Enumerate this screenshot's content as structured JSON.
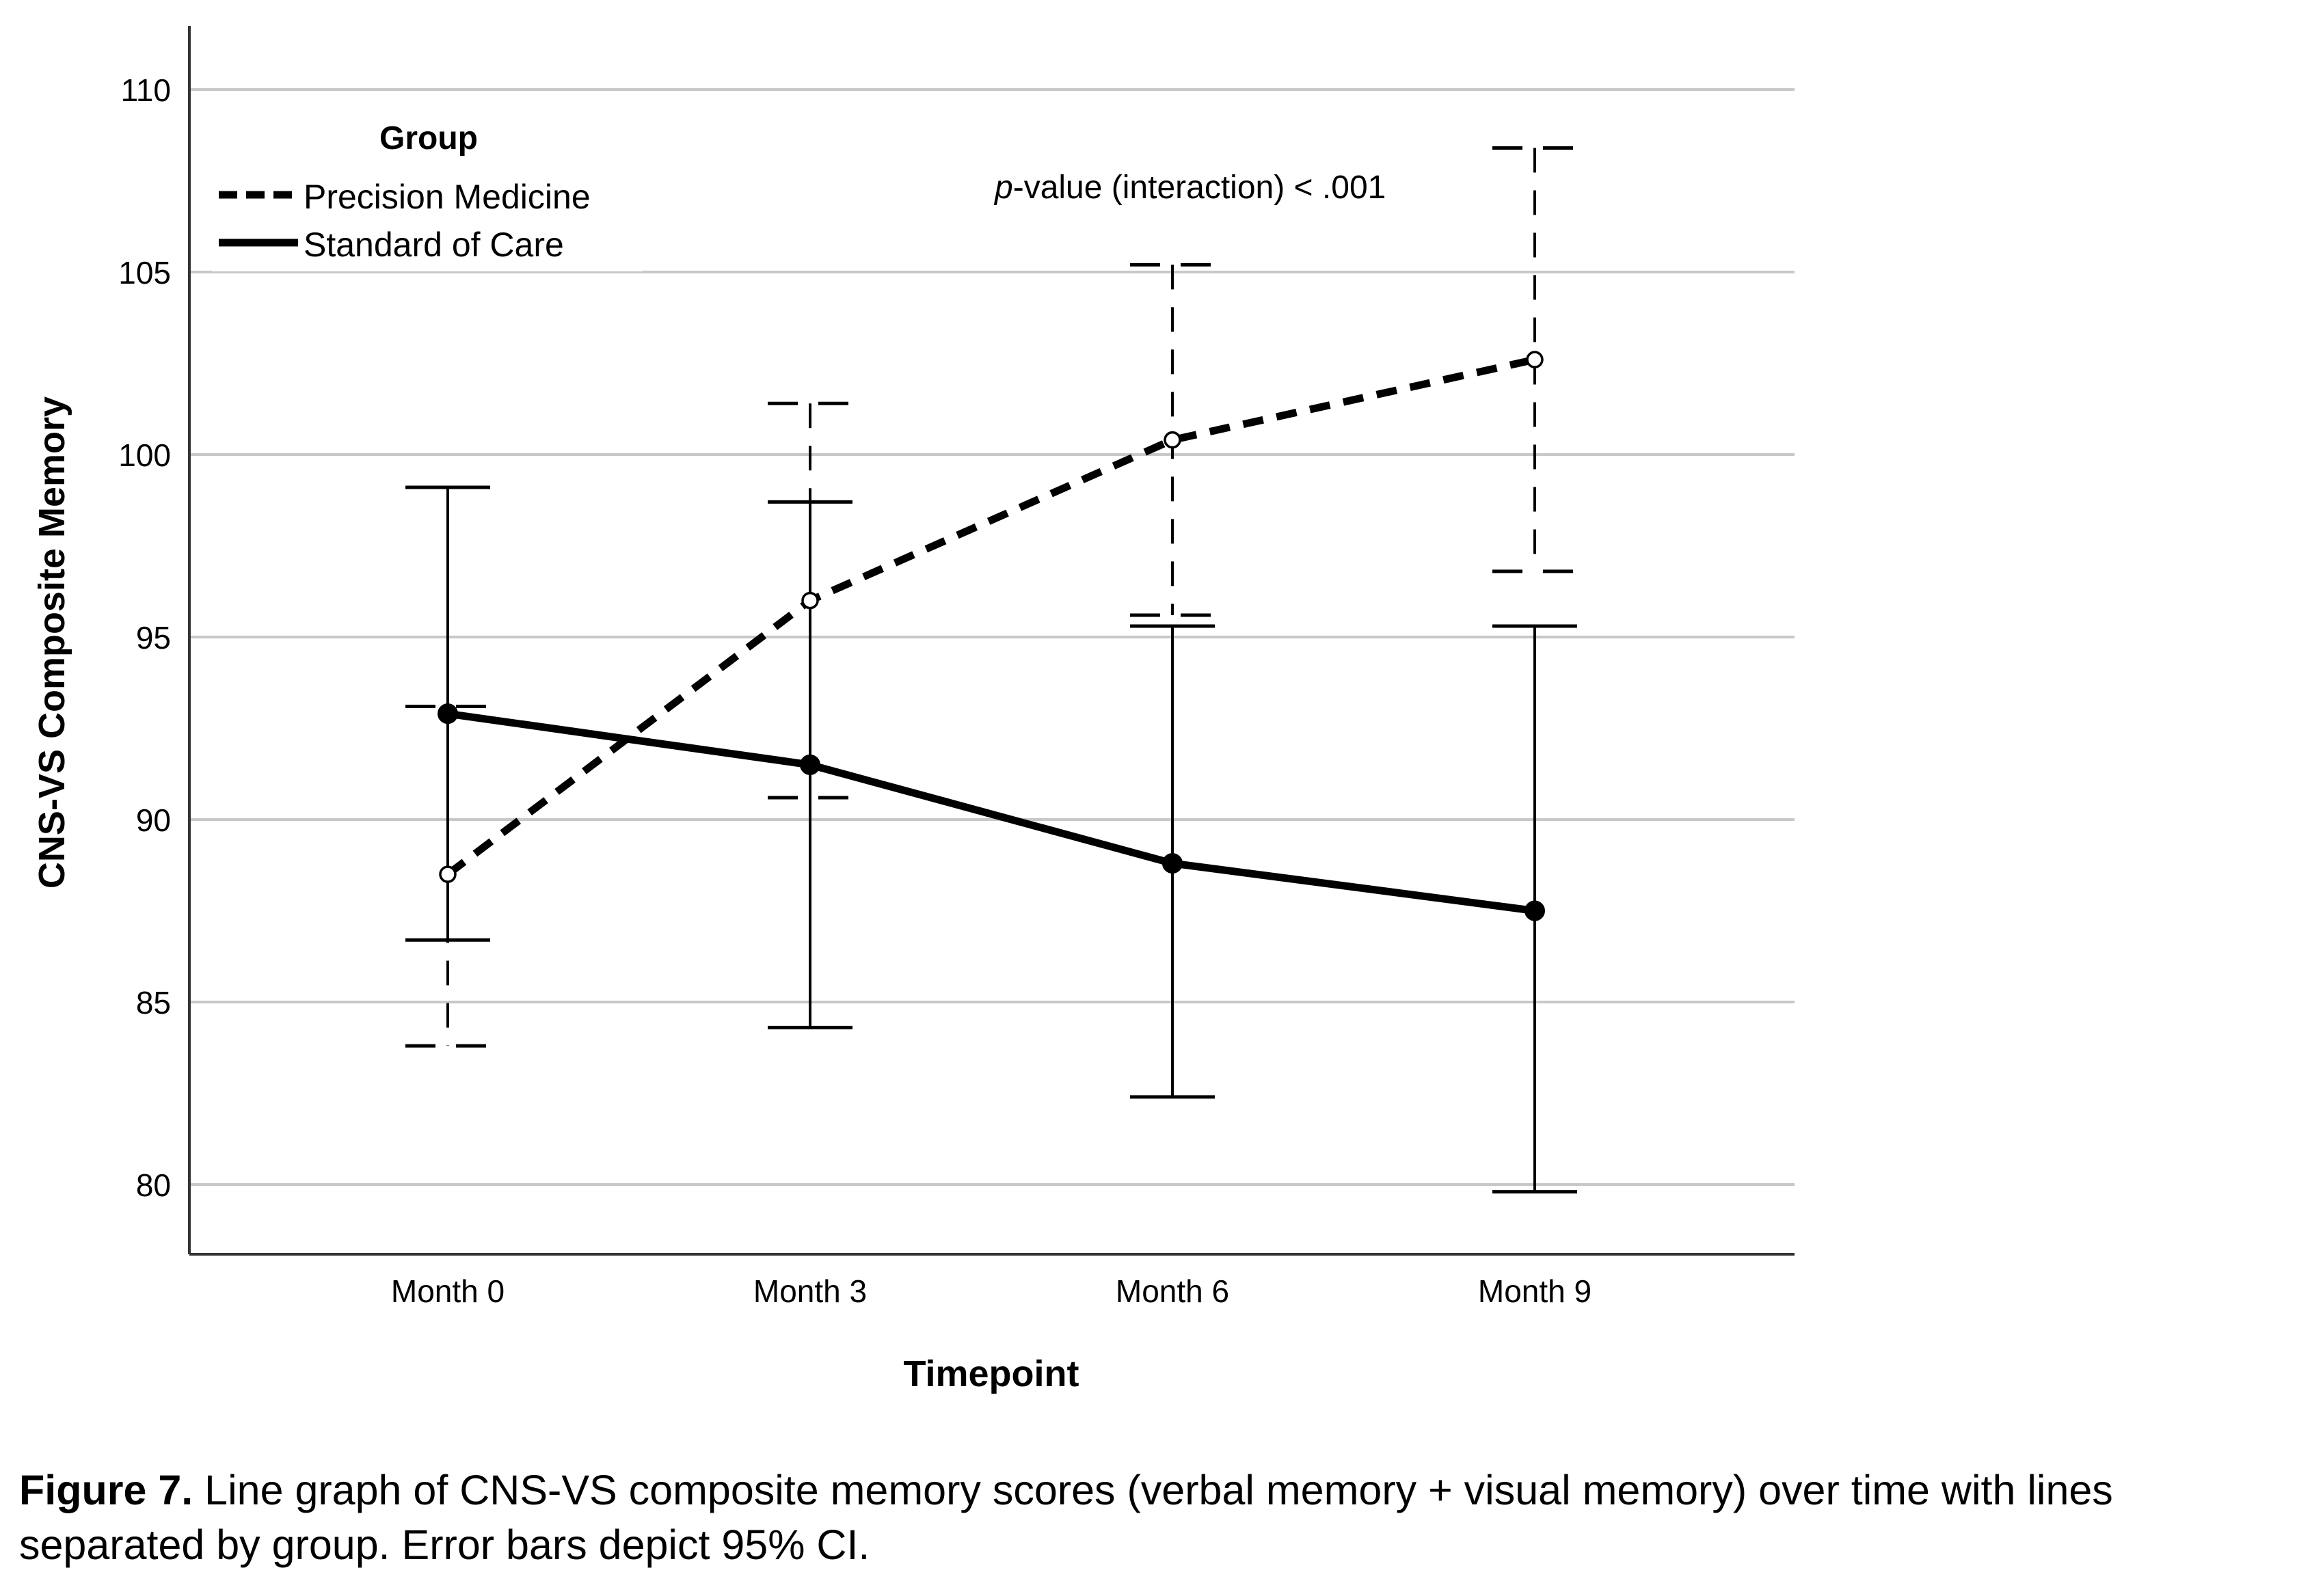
{
  "chart_data": {
    "type": "line",
    "xlabel": "Timepoint",
    "ylabel": "CNS-VS Composite Memory",
    "categories": [
      "Month 0",
      "Month 3",
      "Month 6",
      "Month 9"
    ],
    "ylim": [
      78,
      111
    ],
    "yticks": [
      80,
      85,
      90,
      95,
      100,
      105,
      110
    ],
    "grid": true,
    "legend": {
      "title": "Group",
      "position": "top-left",
      "entries": [
        "Precision Medicine",
        "Standard of Care"
      ]
    },
    "annotation": {
      "italic": "p",
      "text": "-value (interaction) < .001"
    },
    "series": [
      {
        "name": "Precision Medicine",
        "style": "dashed",
        "marker": "open-circle",
        "values": [
          88.5,
          96.0,
          100.4,
          102.6
        ],
        "ci_low": [
          83.8,
          90.6,
          95.6,
          96.8
        ],
        "ci_high": [
          93.1,
          101.4,
          105.2,
          108.4
        ]
      },
      {
        "name": "Standard of Care",
        "style": "solid",
        "marker": "filled-circle",
        "values": [
          92.9,
          91.5,
          88.8,
          87.5
        ],
        "ci_low": [
          86.7,
          84.3,
          82.4,
          79.8
        ],
        "ci_high": [
          99.1,
          98.7,
          95.3,
          95.3
        ]
      }
    ],
    "colors": {
      "line": "#000000",
      "grid": "#c8c8c8",
      "axis": "#333333"
    }
  },
  "caption": {
    "label": "Figure 7.",
    "text": " Line graph of CNS-VS composite memory scores (verbal memory + visual memory) over time with lines separated by group. Error bars depict 95% CI."
  }
}
